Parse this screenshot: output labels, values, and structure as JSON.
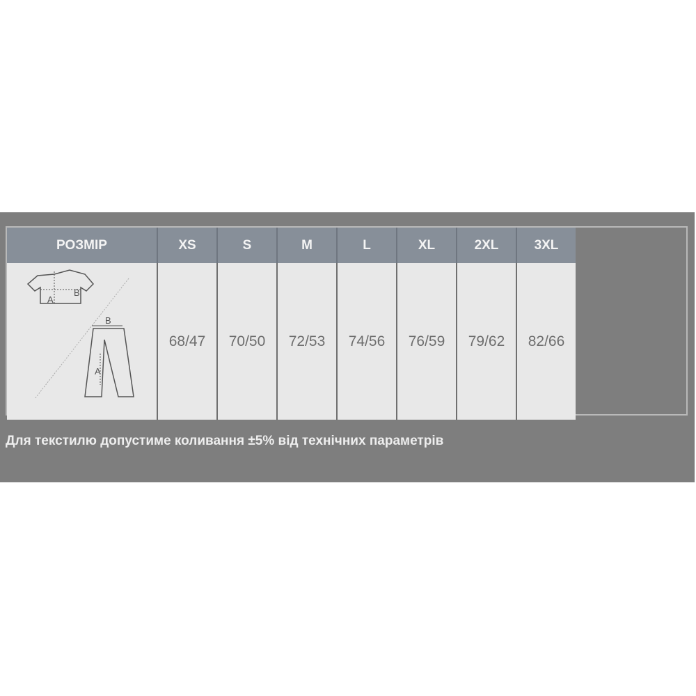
{
  "table": {
    "header_label": "РОЗМІР",
    "sizes": [
      "XS",
      "S",
      "M",
      "L",
      "XL",
      "2XL",
      "3XL"
    ],
    "values": [
      "68/47",
      "70/50",
      "72/53",
      "74/56",
      "76/59",
      "79/62",
      "82/66"
    ],
    "diagram": {
      "shirt_labels": [
        "A",
        "B"
      ],
      "pants_labels": [
        "A",
        "B"
      ]
    }
  },
  "note": "Для текстилю допустиме коливання ±5% від технічних параметрів"
}
